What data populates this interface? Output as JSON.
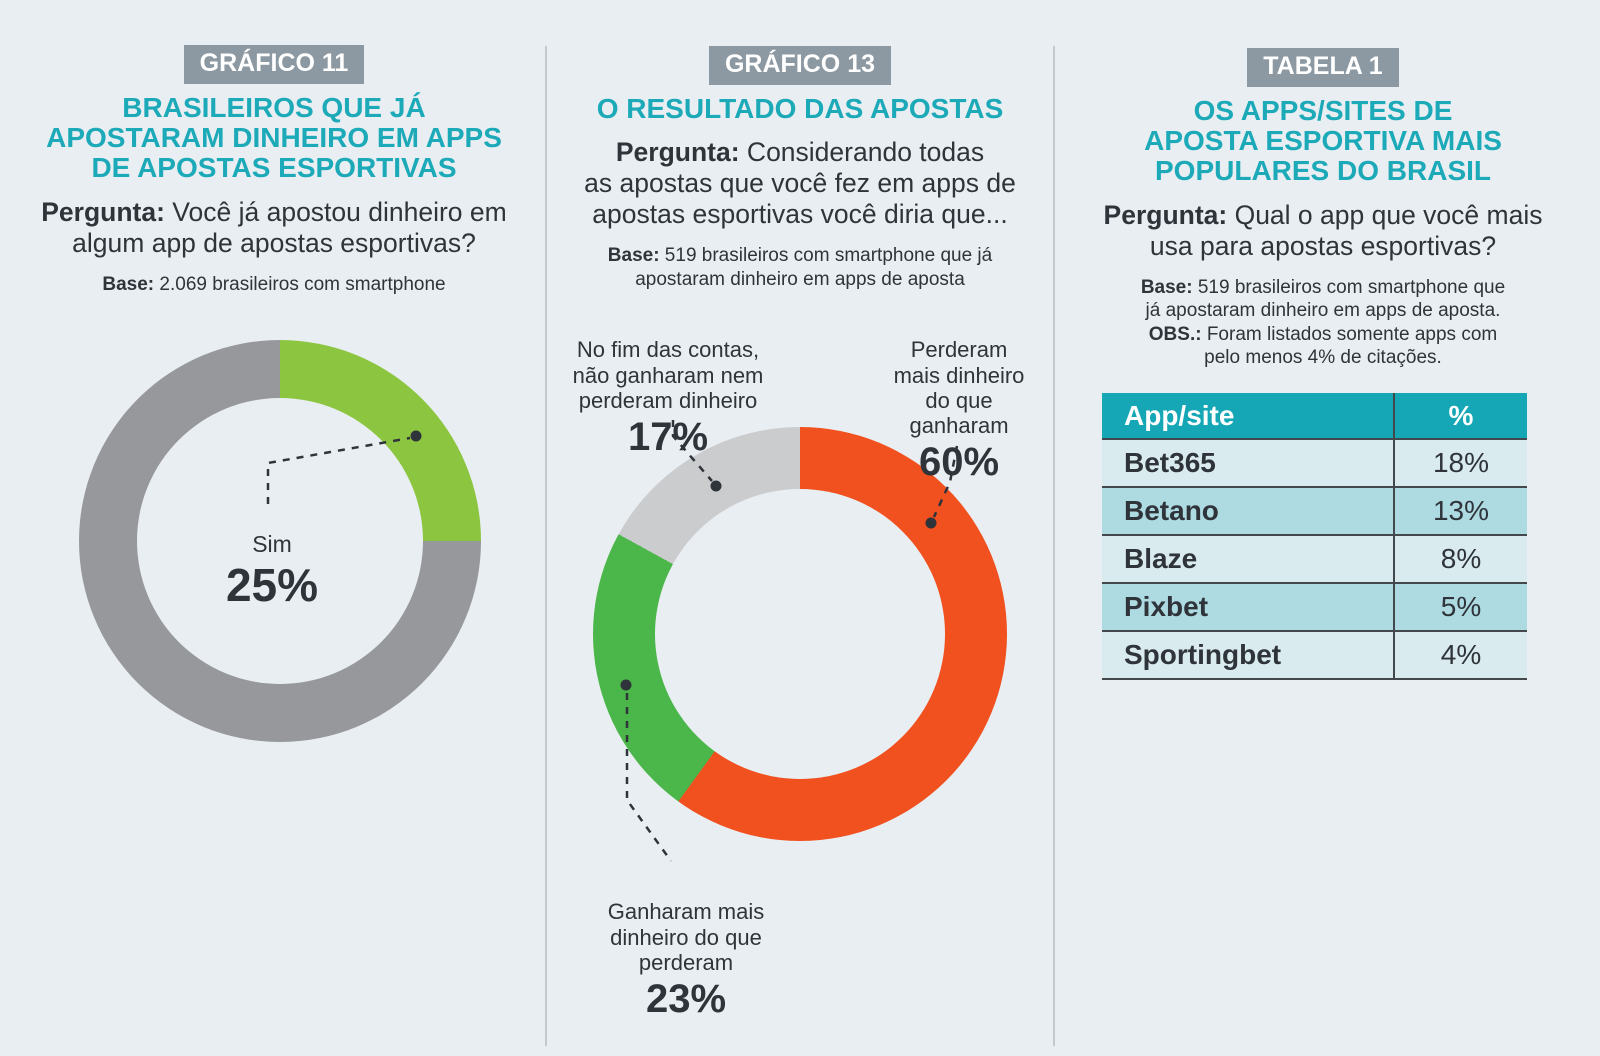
{
  "colors": {
    "background": "#E9EEF2",
    "badge_gray": "#8C99A2",
    "heading_teal": "#1CA9B8",
    "text_dark": "#2F343A",
    "table_header_teal": "#15A7B5",
    "table_row_light": "#D9EBEF",
    "table_row_dark": "#AEDAE1"
  },
  "panels": [
    {
      "badge": "GRÁFICO 11",
      "title_lines": [
        "BRASILEIROS QUE JÁ",
        "APOSTARAM DINHEIRO EM APPS",
        "DE APOSTAS ESPORTIVAS"
      ],
      "question_label": "Pergunta:",
      "question_lines": [
        " Você já apostou dinheiro em",
        "algum app de apostas esportivas?"
      ],
      "notes": [
        {
          "label": "Base:",
          "lines": [
            " 2.069 brasileiros com smartphone"
          ]
        }
      ]
    },
    {
      "badge": "GRÁFICO 13",
      "title_lines": [
        "O RESULTADO DAS APOSTAS"
      ],
      "question_label": "Pergunta:",
      "question_lines": [
        " Considerando todas",
        "as apostas que você fez em apps de",
        "apostas esportivas você diria que..."
      ],
      "notes": [
        {
          "label": "Base:",
          "lines": [
            " 519 brasileiros com smartphone que já",
            "apostaram dinheiro em apps de aposta"
          ]
        }
      ]
    },
    {
      "badge": "TABELA 1",
      "title_lines": [
        "OS APPS/SITES DE",
        "APOSTA ESPORTIVA MAIS",
        "POPULARES DO BRASIL"
      ],
      "question_label": "Pergunta:",
      "question_lines": [
        " Qual o app que você mais",
        "usa para apostas esportivas?"
      ],
      "notes": [
        {
          "label": "Base:",
          "lines": [
            " 519 brasileiros com smartphone que",
            "já apostaram dinheiro em apps de aposta."
          ]
        },
        {
          "label": "OBS.:",
          "lines": [
            " Foram listados somente apps com",
            "pelo menos 4% de citações."
          ]
        }
      ]
    }
  ],
  "chart_data": [
    {
      "type": "pie",
      "subtype": "donut",
      "title": "Brasileiros que já apostaram dinheiro em apps de apostas esportivas",
      "start_angle_deg": 0,
      "direction": "clockwise",
      "segments": [
        {
          "label": "Sim",
          "value": 25,
          "pct_label": "25%",
          "color": "#8CC540"
        },
        {
          "label": "",
          "value": 75,
          "pct_label": "",
          "color": "#97989B"
        }
      ]
    },
    {
      "type": "pie",
      "subtype": "donut",
      "title": "O resultado das apostas",
      "start_angle_deg": 0,
      "direction": "clockwise",
      "segments": [
        {
          "label": "Perderam mais dinheiro do que ganharam",
          "label_lines": [
            "Perderam",
            "mais dinheiro",
            "do que",
            "ganharam"
          ],
          "value": 60,
          "pct_label": "60%",
          "color": "#F1501F"
        },
        {
          "label": "Ganharam mais dinheiro do que perderam",
          "label_lines": [
            "Ganharam mais",
            "dinheiro do que",
            "perderam"
          ],
          "value": 23,
          "pct_label": "23%",
          "color": "#4BB649"
        },
        {
          "label": "No fim das contas, não ganharam nem perderam dinheiro",
          "label_lines": [
            "No fim das contas,",
            "não ganharam nem",
            "perderam dinheiro"
          ],
          "value": 17,
          "pct_label": "17%",
          "color": "#CBCCCE"
        }
      ]
    },
    {
      "type": "table",
      "title": "Os apps/sites de aposta esportiva mais populares do Brasil",
      "columns": [
        "App/site",
        "%"
      ],
      "rows": [
        [
          "Bet365",
          "18%"
        ],
        [
          "Betano",
          "13%"
        ],
        [
          "Blaze",
          "8%"
        ],
        [
          "Pixbet",
          "5%"
        ],
        [
          "Sportingbet",
          "4%"
        ]
      ]
    }
  ]
}
